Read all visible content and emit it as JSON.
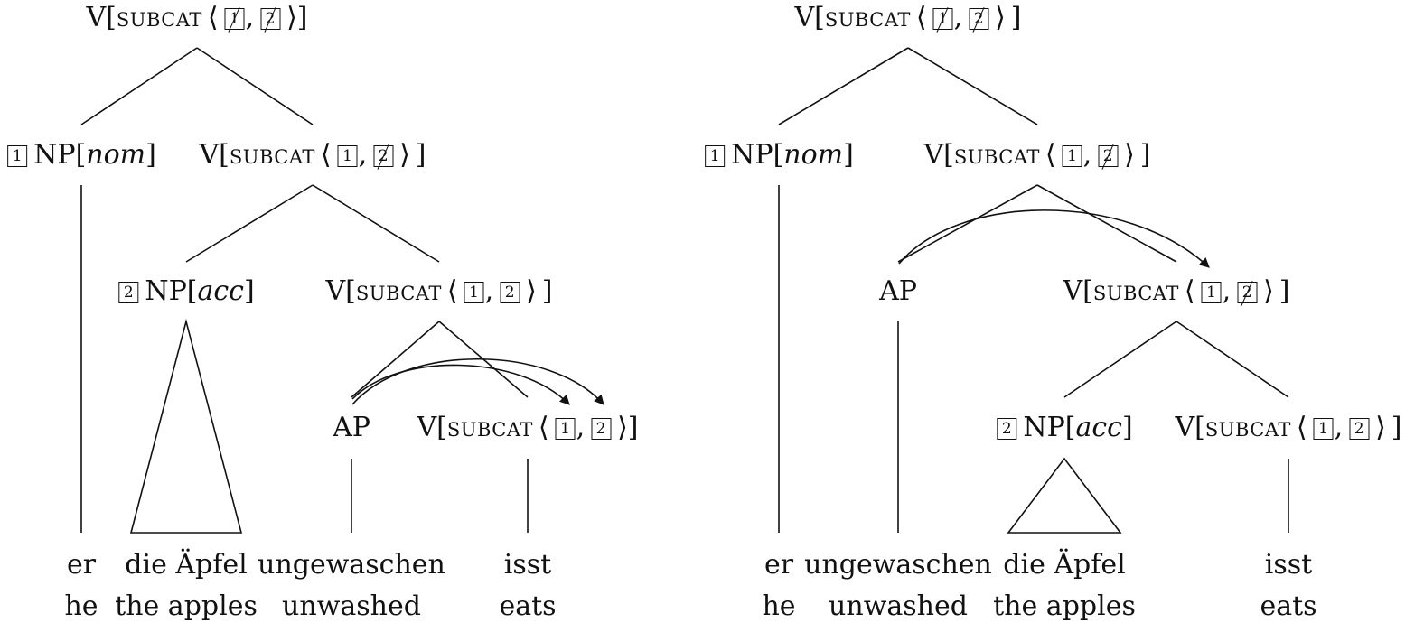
{
  "colors": {
    "ink": "#111111",
    "background": "#ffffff"
  },
  "trees": [
    {
      "root": {
        "cat": "V",
        "feat": "subcat",
        "tags": [
          "1",
          "2"
        ],
        "struck": [
          true,
          true
        ]
      },
      "subj": {
        "tag": "1",
        "cat": "NP",
        "case": "nom"
      },
      "v1": {
        "cat": "V",
        "feat": "subcat",
        "tags": [
          "1",
          "2"
        ],
        "struck": [
          false,
          true
        ]
      },
      "obj": {
        "tag": "2",
        "cat": "NP",
        "case": "acc"
      },
      "v2": {
        "cat": "V",
        "feat": "subcat",
        "tags": [
          "1",
          "2"
        ],
        "struck": [
          false,
          false
        ]
      },
      "ap": {
        "cat": "AP"
      },
      "v3": {
        "cat": "V",
        "feat": "subcat",
        "tags": [
          "1",
          "2"
        ],
        "struck": [
          false,
          false
        ]
      },
      "words": [
        {
          "de": "er",
          "en": "he"
        },
        {
          "de": "die Äpfel",
          "en": "the apples"
        },
        {
          "de": "ungewaschen",
          "en": "unwashed"
        },
        {
          "de": "isst",
          "en": "eats"
        }
      ]
    },
    {
      "root": {
        "cat": "V",
        "feat": "subcat",
        "tags": [
          "1",
          "2"
        ],
        "struck": [
          true,
          true
        ]
      },
      "subj": {
        "tag": "1",
        "cat": "NP",
        "case": "nom"
      },
      "v1": {
        "cat": "V",
        "feat": "subcat",
        "tags": [
          "1",
          "2"
        ],
        "struck": [
          false,
          true
        ]
      },
      "ap": {
        "cat": "AP"
      },
      "v2": {
        "cat": "V",
        "feat": "subcat",
        "tags": [
          "1",
          "2"
        ],
        "struck": [
          false,
          true
        ]
      },
      "obj": {
        "tag": "2",
        "cat": "NP",
        "case": "acc"
      },
      "v3": {
        "cat": "V",
        "feat": "subcat",
        "tags": [
          "1",
          "2"
        ],
        "struck": [
          false,
          false
        ]
      },
      "words": [
        {
          "de": "er",
          "en": "he"
        },
        {
          "de": "ungewaschen",
          "en": "unwashed"
        },
        {
          "de": "die Äpfel",
          "en": "the apples"
        },
        {
          "de": "isst",
          "en": "eats"
        }
      ]
    }
  ]
}
